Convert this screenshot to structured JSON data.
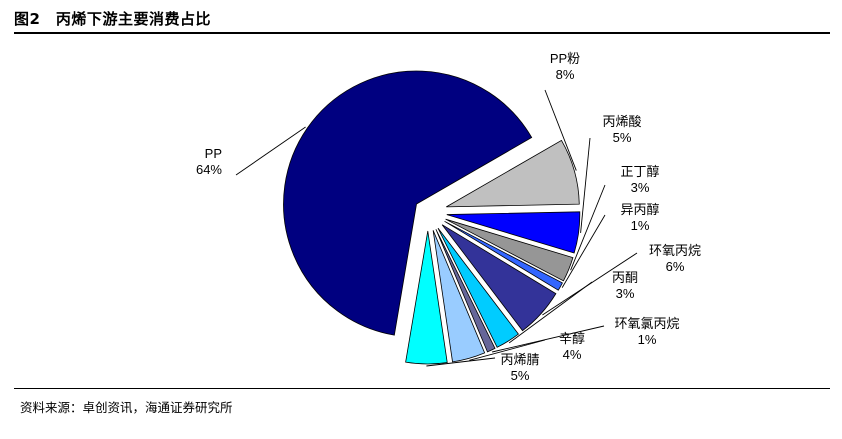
{
  "figure": {
    "title": "图2　丙烯下游主要消费占比",
    "source": "资料来源：卓创资讯，海通证券研究所"
  },
  "chart_data": {
    "type": "pie",
    "title": "",
    "categories": [
      "PP",
      "PP粉",
      "丙烯酸",
      "正丁醇",
      "异丙醇",
      "环氧丙烷",
      "丙酮",
      "环氧氯丙烷",
      "辛醇",
      "丙烯腈"
    ],
    "values": [
      64,
      8,
      5,
      3,
      1,
      6,
      3,
      1,
      4,
      5
    ],
    "value_labels": [
      "64%",
      "8%",
      "5%",
      "3%",
      "1%",
      "6%",
      "3%",
      "1%",
      "4%",
      "5%"
    ],
    "colors": [
      "#000080",
      "#C0C0C0",
      "#0000FF",
      "#969696",
      "#3366FF",
      "#333399",
      "#00CCFF",
      "#666699",
      "#99CCFF",
      "#00FFFF"
    ],
    "exploded": true,
    "legend": "none (leader-line labels)"
  }
}
